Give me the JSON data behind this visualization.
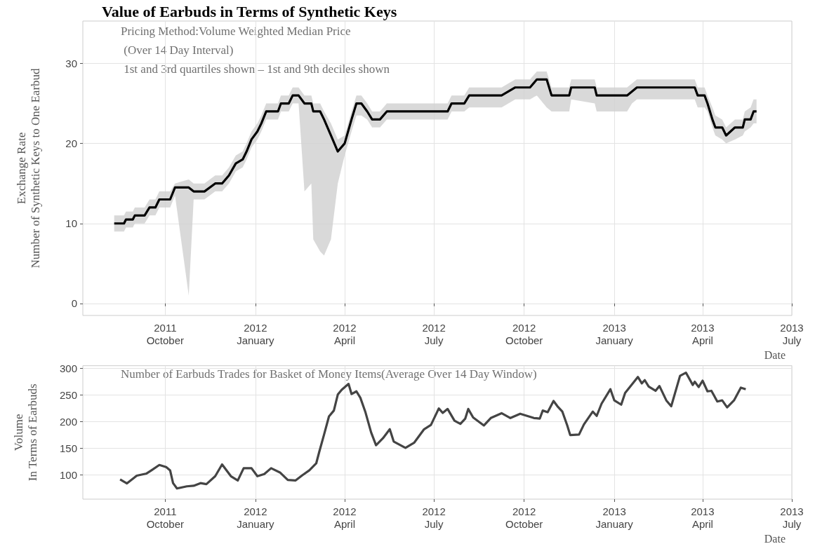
{
  "chart_data": [
    {
      "type": "line",
      "title": "Value of Earbuds in Terms of Synthetic Keys",
      "xlabel": "Date",
      "ylabel": "Exchange Rate\nNumber of Synthetic Keys to One Earbud",
      "annotations": [
        "Pricing Method:Volume Weighted Median Price",
        " (Over 14 Day Interval)",
        " 1st and 3rd quartiles shown – 1st and 9th deciles shown"
      ],
      "xlim": [
        "2011-07-09",
        "2013-07-01"
      ],
      "xticks": [
        {
          "value": "2011-10-01",
          "label": "2011\nOctober"
        },
        {
          "value": "2012-01-01",
          "label": "2012\nJanuary"
        },
        {
          "value": "2012-04-01",
          "label": "2012\nApril"
        },
        {
          "value": "2012-07-01",
          "label": "2012\nJuly"
        },
        {
          "value": "2012-10-01",
          "label": "2012\nOctober"
        },
        {
          "value": "2013-01-01",
          "label": "2013\nJanuary"
        },
        {
          "value": "2013-04-01",
          "label": "2013\nApril"
        },
        {
          "value": "2013-07-01",
          "label": "2013\nJuly"
        }
      ],
      "ylim": [
        -1.5,
        35.3
      ],
      "yticks": [
        0,
        10,
        20,
        30
      ],
      "grid": true,
      "marker": "none",
      "series": [
        {
          "color": "#000000",
          "x": [
            "2011-08-10",
            "2011-08-20",
            "2011-08-22",
            "2011-08-29",
            "2011-08-31",
            "2011-09-10",
            "2011-09-15",
            "2011-09-21",
            "2011-09-25",
            "2011-10-06",
            "2011-10-11",
            "2011-10-25",
            "2011-10-30",
            "2011-11-10",
            "2011-11-21",
            "2011-11-28",
            "2011-12-05",
            "2011-12-12",
            "2011-12-19",
            "2011-12-23",
            "2011-12-28",
            "2012-01-03",
            "2012-01-07",
            "2012-01-12",
            "2012-01-24",
            "2012-01-27",
            "2012-02-04",
            "2012-02-08",
            "2012-02-14",
            "2012-02-20",
            "2012-02-27",
            "2012-02-29",
            "2012-03-07",
            "2012-03-11",
            "2012-03-18",
            "2012-03-25",
            "2012-04-01",
            "2012-04-08",
            "2012-04-13",
            "2012-04-18",
            "2012-04-24",
            "2012-04-29",
            "2012-05-07",
            "2012-05-14",
            "2012-07-15",
            "2012-07-19",
            "2012-08-01",
            "2012-08-06",
            "2012-09-08",
            "2012-09-15",
            "2012-09-22",
            "2012-10-07",
            "2012-10-14",
            "2012-10-24",
            "2012-10-29",
            "2012-11-16",
            "2012-11-18",
            "2012-12-12",
            "2012-12-14",
            "2013-01-14",
            "2013-01-19",
            "2013-01-24",
            "2013-03-24",
            "2013-03-27",
            "2013-04-03",
            "2013-04-06",
            "2013-04-11",
            "2013-04-14",
            "2013-04-21",
            "2013-04-25",
            "2013-05-04",
            "2013-05-12",
            "2013-05-14",
            "2013-05-20",
            "2013-05-23",
            "2013-05-26"
          ],
          "values": [
            10,
            10,
            10.5,
            10.5,
            11,
            11,
            12,
            12,
            13,
            13,
            14.5,
            14.5,
            14,
            14,
            15,
            15,
            16,
            17.5,
            18,
            19,
            20.5,
            21.5,
            22.5,
            24,
            24,
            25,
            25,
            26,
            26,
            25,
            25,
            24,
            24,
            23,
            21,
            19,
            20,
            23,
            25,
            25,
            24,
            23,
            23,
            24,
            24,
            25,
            25,
            26,
            26,
            26.5,
            27,
            27,
            28,
            28,
            26,
            26,
            27,
            27,
            26,
            26,
            26.5,
            27,
            27,
            26,
            26,
            25,
            23,
            22,
            22,
            21,
            22,
            22,
            23,
            23,
            24,
            24
          ],
          "lower": [
            9,
            9,
            9.5,
            9.5,
            10,
            10,
            11,
            11,
            12,
            12,
            13.5,
            1,
            13,
            13,
            14,
            14,
            15,
            16.5,
            17,
            18,
            19.5,
            20.5,
            21.5,
            23,
            23,
            24,
            24,
            25,
            25,
            14,
            15,
            8,
            6.5,
            6,
            8,
            15,
            18.5,
            21.5,
            23.5,
            23.5,
            23,
            22,
            22,
            23,
            23,
            24,
            24,
            24.5,
            24.5,
            25,
            25.5,
            25.5,
            26,
            24.5,
            24,
            24,
            25.5,
            25,
            24,
            24,
            25,
            25.5,
            25.5,
            24.5,
            24.5,
            24,
            22,
            21,
            20.5,
            20,
            20.5,
            21,
            21.5,
            22,
            22.5,
            22.5
          ],
          "upper": [
            11,
            11,
            11.5,
            11.5,
            12,
            12,
            13,
            13,
            14,
            14,
            15,
            15.5,
            15,
            15,
            16,
            16,
            17,
            18.5,
            19,
            20,
            21.5,
            22.5,
            23.5,
            25,
            25,
            26,
            26,
            27,
            27,
            26,
            26,
            25,
            25,
            24,
            22.5,
            20.5,
            21,
            24,
            26,
            26,
            25,
            24,
            24,
            25,
            25,
            26,
            26,
            27,
            27,
            27.5,
            28,
            28,
            29,
            29,
            27,
            27,
            28,
            28,
            27,
            27,
            27.5,
            28,
            28,
            27,
            27,
            26,
            24.5,
            23.5,
            23,
            22,
            23,
            23,
            24,
            24.5,
            25.5,
            25.5
          ]
        }
      ]
    },
    {
      "type": "line",
      "xlabel": "Date",
      "ylabel": "Volume\nIn Terms of Earbuds",
      "annotations": [
        "Number of Earbuds Trades for Basket of Money Items(Average Over 14 Day Window)"
      ],
      "xlim": [
        "2011-07-09",
        "2013-07-01"
      ],
      "xticks": [
        {
          "value": "2011-10-01",
          "label": "2011\nOctober"
        },
        {
          "value": "2012-01-01",
          "label": "2012\nJanuary"
        },
        {
          "value": "2012-04-01",
          "label": "2012\nApril"
        },
        {
          "value": "2012-07-01",
          "label": "2012\nJuly"
        },
        {
          "value": "2012-10-01",
          "label": "2012\nOctober"
        },
        {
          "value": "2013-01-01",
          "label": "2013\nJanuary"
        },
        {
          "value": "2013-04-01",
          "label": "2013\nApril"
        },
        {
          "value": "2013-07-01",
          "label": "2013\nJuly"
        }
      ],
      "ylim": [
        55,
        305
      ],
      "yticks": [
        100,
        150,
        200,
        250,
        300
      ],
      "grid": true,
      "marker": "none",
      "series": [
        {
          "color": "#444444",
          "x": [
            "2011-08-16",
            "2011-08-23",
            "2011-09-02",
            "2011-09-12",
            "2011-09-17",
            "2011-09-25",
            "2011-10-02",
            "2011-10-06",
            "2011-10-09",
            "2011-10-13",
            "2011-10-23",
            "2011-10-30",
            "2011-11-06",
            "2011-11-12",
            "2011-11-21",
            "2011-11-28",
            "2011-12-07",
            "2011-12-14",
            "2011-12-20",
            "2011-12-28",
            "2012-01-03",
            "2012-01-10",
            "2012-01-17",
            "2012-01-26",
            "2012-02-03",
            "2012-02-11",
            "2012-02-18",
            "2012-02-25",
            "2012-03-03",
            "2012-03-06",
            "2012-03-11",
            "2012-03-16",
            "2012-03-21",
            "2012-03-25",
            "2012-03-29",
            "2012-04-05",
            "2012-04-08",
            "2012-04-13",
            "2012-04-17",
            "2012-04-22",
            "2012-04-28",
            "2012-05-03",
            "2012-05-10",
            "2012-05-17",
            "2012-05-21",
            "2012-06-02",
            "2012-06-11",
            "2012-06-21",
            "2012-06-28",
            "2012-07-06",
            "2012-07-10",
            "2012-07-15",
            "2012-07-22",
            "2012-07-28",
            "2012-08-02",
            "2012-08-05",
            "2012-08-10",
            "2012-08-21",
            "2012-08-28",
            "2012-09-08",
            "2012-09-17",
            "2012-09-27",
            "2012-10-11",
            "2012-10-17",
            "2012-10-20",
            "2012-10-25",
            "2012-10-31",
            "2012-11-04",
            "2012-11-09",
            "2012-11-14",
            "2012-11-17",
            "2012-11-26",
            "2012-12-01",
            "2012-12-10",
            "2012-12-14",
            "2012-12-19",
            "2012-12-28",
            "2013-01-01",
            "2013-01-08",
            "2013-01-12",
            "2013-01-19",
            "2013-01-25",
            "2013-01-29",
            "2013-02-01",
            "2013-02-05",
            "2013-02-12",
            "2013-02-16",
            "2013-02-23",
            "2013-02-28",
            "2013-03-09",
            "2013-03-15",
            "2013-03-22",
            "2013-03-24",
            "2013-03-28",
            "2013-04-01",
            "2013-04-06",
            "2013-04-10",
            "2013-04-16",
            "2013-04-21",
            "2013-04-26",
            "2013-05-03",
            "2013-05-10",
            "2013-05-15"
          ],
          "values": [
            92,
            84.5,
            99,
            103,
            109,
            119,
            115,
            109,
            85,
            75,
            79,
            80,
            85,
            83,
            98,
            120,
            98,
            90,
            113,
            113,
            98,
            102,
            113,
            105,
            91,
            90,
            100,
            109,
            122,
            143,
            176,
            210,
            221,
            251,
            260,
            271,
            252,
            257,
            245,
            219,
            180,
            156,
            169,
            186,
            163,
            151,
            161,
            186,
            194,
            225,
            216.5,
            224,
            202,
            196,
            206,
            224,
            208,
            193,
            207,
            216,
            207,
            215,
            207,
            206,
            221,
            218,
            239,
            229,
            219,
            193,
            175,
            176,
            195,
            219,
            211,
            234,
            261,
            240,
            232,
            254,
            270,
            284,
            272,
            278,
            266,
            258,
            267,
            240,
            229,
            286,
            292,
            269,
            275,
            265,
            277,
            257,
            258,
            238,
            240,
            227,
            240,
            264,
            261
          ]
        }
      ]
    }
  ]
}
